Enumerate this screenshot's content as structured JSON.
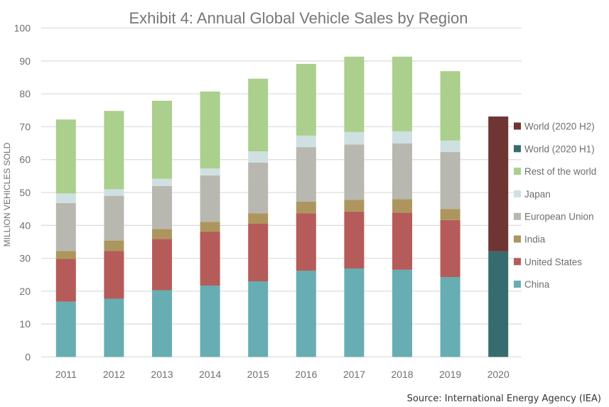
{
  "chart_data": {
    "type": "bar",
    "stacked": true,
    "title": "Exhibit 4: Annual Global Vehicle Sales by Region",
    "xlabel": "",
    "ylabel": "MILLION VEHICLES SOLD",
    "ylim": [
      0,
      100
    ],
    "yticks": [
      0,
      10,
      20,
      30,
      40,
      50,
      60,
      70,
      80,
      90,
      100
    ],
    "grid": true,
    "legend_position": "right",
    "categories": [
      "2011",
      "2012",
      "2013",
      "2014",
      "2015",
      "2016",
      "2017",
      "2018",
      "2019",
      "2020"
    ],
    "series": [
      {
        "name": "China",
        "color": "#66aeb1",
        "values": [
          16.8,
          17.7,
          20.3,
          21.7,
          23.0,
          26.2,
          26.9,
          26.5,
          24.3,
          null
        ]
      },
      {
        "name": "United States",
        "color": "#b55b59",
        "values": [
          13.0,
          14.5,
          15.6,
          16.4,
          17.5,
          17.5,
          17.3,
          17.4,
          17.3,
          null
        ]
      },
      {
        "name": "India",
        "color": "#ad965d",
        "values": [
          2.4,
          3.2,
          3.0,
          3.0,
          3.2,
          3.5,
          3.6,
          4.1,
          3.4,
          null
        ]
      },
      {
        "name": "European Union",
        "color": "#b8b8b1",
        "values": [
          14.6,
          13.6,
          13.1,
          14.1,
          15.4,
          16.6,
          16.8,
          16.9,
          17.3,
          null
        ]
      },
      {
        "name": "Japan",
        "color": "#cfe0e2",
        "values": [
          2.9,
          2.0,
          2.2,
          2.1,
          3.4,
          3.5,
          3.8,
          3.7,
          3.5,
          null
        ]
      },
      {
        "name": "Rest of the world",
        "color": "#abcf8c",
        "values": [
          22.5,
          23.8,
          23.7,
          23.4,
          22.1,
          21.8,
          22.9,
          22.7,
          21.1,
          null
        ]
      },
      {
        "name": "World (2020 H1)",
        "color": "#376c6e",
        "values": [
          null,
          null,
          null,
          null,
          null,
          null,
          null,
          null,
          null,
          32.1
        ]
      },
      {
        "name": "World (2020 H2)",
        "color": "#6e3533",
        "values": [
          null,
          null,
          null,
          null,
          null,
          null,
          null,
          null,
          null,
          41.0
        ]
      }
    ],
    "legend_order": [
      "World (2020 H2)",
      "World (2020 H1)",
      "Rest of the world",
      "Japan",
      "European Union",
      "India",
      "United States",
      "China"
    ],
    "source": "Source: International Energy Agency (IEA)"
  }
}
